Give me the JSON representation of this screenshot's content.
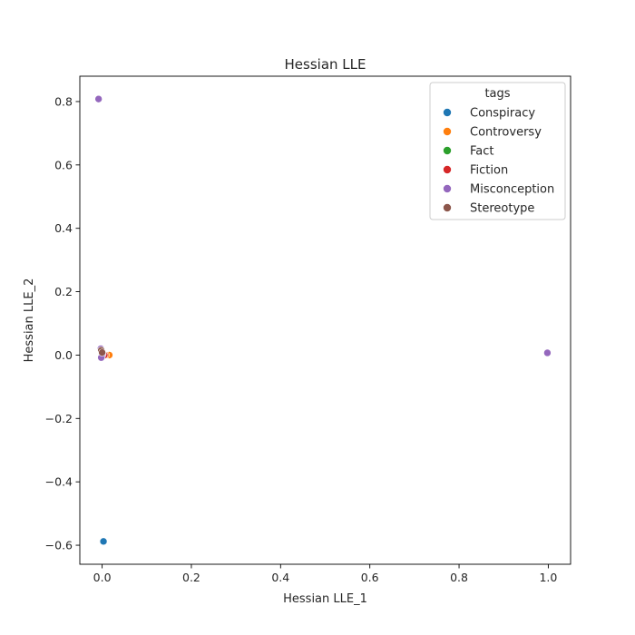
{
  "chart_data": {
    "type": "scatter",
    "title": "Hessian LLE",
    "xlabel": "Hessian LLE_1",
    "ylabel": "Hessian LLE_2",
    "xlim": [
      -0.05,
      1.05
    ],
    "ylim": [
      -0.66,
      0.88
    ],
    "xticks": [
      0.0,
      0.2,
      0.4,
      0.6,
      0.8,
      1.0
    ],
    "xtick_labels": [
      "0.0",
      "0.2",
      "0.4",
      "0.6",
      "0.8",
      "1.0"
    ],
    "yticks": [
      -0.6,
      -0.4,
      -0.2,
      0.0,
      0.2,
      0.4,
      0.6,
      0.8
    ],
    "ytick_labels": [
      "−0.6",
      "−0.4",
      "−0.2",
      "0.0",
      "0.2",
      "0.4",
      "0.6",
      "0.8"
    ],
    "grid": false,
    "legend": {
      "title": "tags",
      "placement": "top-right"
    },
    "series": [
      {
        "name": "Conspiracy",
        "color": "#1f77b4",
        "x": [
          0.003,
          0.001,
          0.0
        ],
        "y": [
          -0.588,
          0.0,
          0.003
        ]
      },
      {
        "name": "Controversy",
        "color": "#ff7f0e",
        "x": [
          0.016,
          0.008,
          0.004
        ],
        "y": [
          0.0,
          0.0,
          0.002
        ]
      },
      {
        "name": "Fact",
        "color": "#2ca02c",
        "x": [
          0.0,
          0.002
        ],
        "y": [
          0.0,
          0.001
        ]
      },
      {
        "name": "Fiction",
        "color": "#d62728",
        "x": [
          0.005,
          0.001
        ],
        "y": [
          0.0,
          0.004
        ]
      },
      {
        "name": "Misconception",
        "color": "#9467bd",
        "x": [
          -0.008,
          0.998,
          -0.003,
          0.0,
          -0.002
        ],
        "y": [
          0.808,
          0.007,
          0.02,
          0.0,
          -0.008
        ]
      },
      {
        "name": "Stereotype",
        "color": "#8c564b",
        "x": [
          -0.002,
          0.0
        ],
        "y": [
          0.015,
          0.008
        ]
      }
    ]
  }
}
